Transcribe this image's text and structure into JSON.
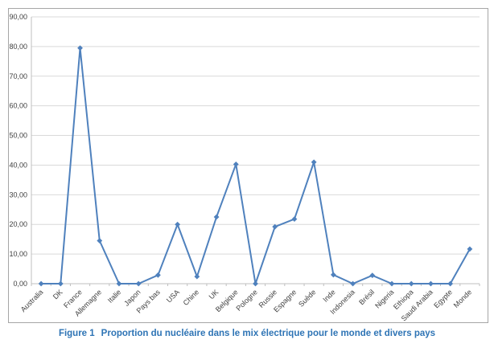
{
  "figure_caption": {
    "label": "Figure 1",
    "text": "Proportion du nucléaire dans le mix électrique pour le monde et divers pays"
  },
  "colors": {
    "series_line": "#4f81bd",
    "gridline": "#d9d9d9",
    "axis_line": "#bfbfbf",
    "tick_label": "#404040",
    "frame_border": "#a6a6a6",
    "caption_text": "#2e74b5"
  },
  "chart_data": {
    "type": "line",
    "title": "",
    "xlabel": "",
    "ylabel": "",
    "legend": "none",
    "grid": true,
    "marker": "diamond",
    "ylim": [
      0,
      90
    ],
    "yticks": [
      0,
      10,
      20,
      30,
      40,
      50,
      60,
      70,
      80,
      90
    ],
    "ytick_labels": [
      "0,00",
      "10,00",
      "20,00",
      "30,00",
      "40,00",
      "50,00",
      "60,00",
      "70,00",
      "80,00",
      "90,00"
    ],
    "categories": [
      "Australia",
      "DK",
      "France",
      "Allemagne",
      "Italie",
      "Japon",
      "Pays bas",
      "USA",
      "Chine",
      "UK",
      "Belgique",
      "Pologne",
      "Russie",
      "Espagne",
      "Suède",
      "Inde",
      "Indonesia",
      "Brésil",
      "Nigeria",
      "Ethiopa",
      "Saudi Arabia",
      "Egypte",
      "Monde"
    ],
    "series": [
      {
        "name": "Proportion du nucléaire dans le mix électrique (%)",
        "values": [
          0.0,
          0.0,
          79.5,
          14.5,
          0.0,
          0.0,
          2.9,
          20.0,
          2.4,
          22.5,
          40.3,
          0.0,
          19.2,
          21.8,
          41.0,
          3.0,
          0.0,
          2.8,
          0.0,
          0.0,
          0.0,
          0.0,
          11.7
        ]
      }
    ]
  }
}
